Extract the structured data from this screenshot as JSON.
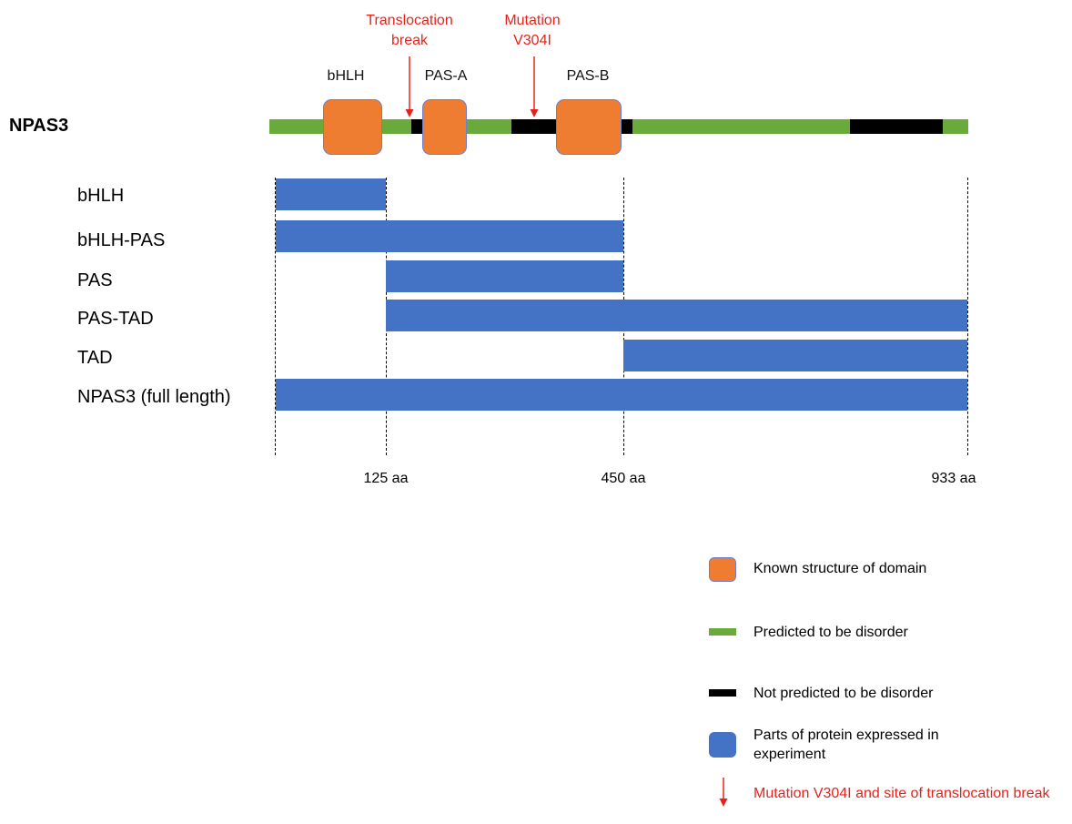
{
  "protein": "NPAS3",
  "annotations": {
    "translocation": "Translocation\nbreak",
    "mutation": "Mutation\nV304I"
  },
  "domains": {
    "bhlh": "bHLH",
    "pas_a": "PAS-A",
    "pas_b": "PAS-B"
  },
  "constructs": [
    {
      "label": "bHLH",
      "start_aa": 1,
      "end_aa": 125
    },
    {
      "label": "bHLH-PAS",
      "start_aa": 1,
      "end_aa": 450
    },
    {
      "label": "PAS",
      "start_aa": 125,
      "end_aa": 450
    },
    {
      "label": "PAS-TAD",
      "start_aa": 125,
      "end_aa": 933
    },
    {
      "label": "TAD",
      "start_aa": 450,
      "end_aa": 933
    },
    {
      "label": "NPAS3 (full length)",
      "start_aa": 1,
      "end_aa": 933
    }
  ],
  "ticks": [
    "125 aa",
    "450 aa",
    "933 aa"
  ],
  "legend": {
    "known_structure": "Known structure of domain",
    "disorder": "Predicted to be disorder",
    "not_disorder": "Not predicted to be disorder",
    "expressed": "Parts of protein expressed in experiment",
    "mutation_site": "Mutation V304I and site of translocation break"
  },
  "colors": {
    "domain": "#ee7d31",
    "disorder": "#6aaa3a",
    "not_disorder": "#000000",
    "expressed": "#4472c4",
    "annotation": "#e8221b"
  }
}
